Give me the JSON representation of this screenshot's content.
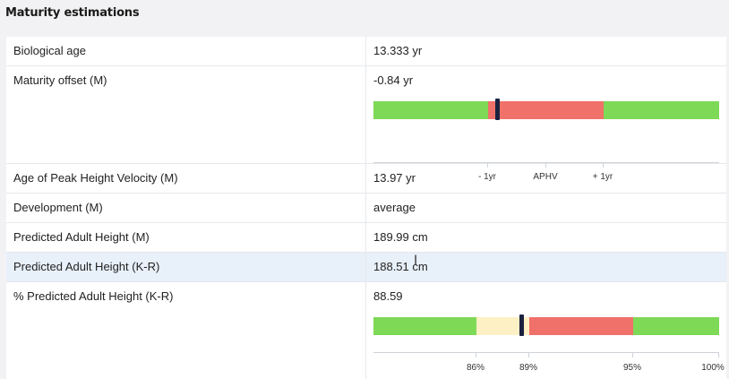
{
  "section": {
    "title": "Maturity estimations"
  },
  "rows": {
    "bio": {
      "label": "Biological age",
      "value": "13.333 yr"
    },
    "mo": {
      "label": "Maturity offset (M)",
      "value": "-0.84 yr"
    },
    "aphv": {
      "label": "Age of Peak Height Velocity (M)",
      "value": "13.97 yr"
    },
    "dev": {
      "label": "Development (M)",
      "value": "average"
    },
    "pah_m": {
      "label": "Predicted Adult Height (M)",
      "value": "189.99 cm"
    },
    "pah_kr": {
      "label": "Predicted Adult Height (K-R)",
      "value": "188.51 cm"
    },
    "pct": {
      "label": "% Predicted Adult Height (K-R)",
      "value": "88.59"
    }
  },
  "maturity_scale": {
    "ticks": [
      "- 1yr",
      "APHV",
      "+ 1yr"
    ],
    "colors": {
      "green": "#7ed957",
      "red": "#f07169",
      "marker": "#1b2240"
    }
  },
  "pct_scale": {
    "ticks": [
      "86%",
      "89%",
      "95%",
      "100%"
    ],
    "colors": {
      "green": "#7ed957",
      "yellow": "#fdf0c4",
      "red": "#f07169",
      "marker": "#1b2240"
    }
  }
}
